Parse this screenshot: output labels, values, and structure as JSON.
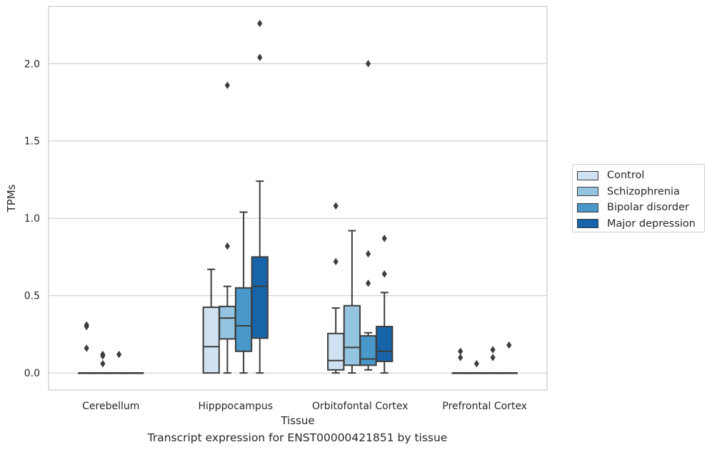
{
  "chart_data": {
    "type": "box",
    "title": "",
    "xlabel": "Tissue",
    "ylabel": "TPMs",
    "caption": "Transcript expression for ENST00000421851 by tissue",
    "ylim": [
      -0.11,
      2.37
    ],
    "yticks": [
      0.0,
      0.5,
      1.0,
      1.5,
      2.0
    ],
    "ytick_labels": [
      "0.0",
      "0.5",
      "1.0",
      "1.5",
      "2.0"
    ],
    "grid": "horizontal",
    "legend_position": "right",
    "categories": [
      "Cerebellum",
      "Hipppocampus",
      "Orbitofontal Cortex",
      "Prefrontal Cortex"
    ],
    "series": [
      {
        "name": "Control",
        "color": "#d0e1f2",
        "boxes": [
          {
            "whisker_low": 0.0,
            "q1": 0.0,
            "median": 0.0,
            "q3": 0.0,
            "whisker_high": 0.0,
            "outliers": [
              0.3,
              0.31,
              0.16
            ]
          },
          {
            "whisker_low": 0.0,
            "q1": 0.0,
            "median": 0.17,
            "q3": 0.425,
            "whisker_high": 0.67,
            "outliers": []
          },
          {
            "whisker_low": 0.0,
            "q1": 0.02,
            "median": 0.08,
            "q3": 0.255,
            "whisker_high": 0.42,
            "outliers": [
              0.72,
              1.08
            ]
          },
          {
            "whisker_low": 0.0,
            "q1": 0.0,
            "median": 0.0,
            "q3": 0.0,
            "whisker_high": 0.0,
            "outliers": [
              0.1,
              0.14
            ]
          }
        ]
      },
      {
        "name": "Schizophrenia",
        "color": "#94c4df",
        "boxes": [
          {
            "whisker_low": 0.0,
            "q1": 0.0,
            "median": 0.0,
            "q3": 0.0,
            "whisker_high": 0.0,
            "outliers": [
              0.06,
              0.11,
              0.12
            ]
          },
          {
            "whisker_low": 0.0,
            "q1": 0.22,
            "median": 0.355,
            "q3": 0.43,
            "whisker_high": 0.56,
            "outliers": [
              0.82,
              1.86
            ]
          },
          {
            "whisker_low": 0.0,
            "q1": 0.05,
            "median": 0.165,
            "q3": 0.435,
            "whisker_high": 0.92,
            "outliers": []
          },
          {
            "whisker_low": 0.0,
            "q1": 0.0,
            "median": 0.0,
            "q3": 0.0,
            "whisker_high": 0.0,
            "outliers": [
              0.06
            ]
          }
        ]
      },
      {
        "name": "Bipolar disorder",
        "color": "#4a98c9",
        "boxes": [
          {
            "whisker_low": 0.0,
            "q1": 0.0,
            "median": 0.0,
            "q3": 0.0,
            "whisker_high": 0.0,
            "outliers": [
              0.12
            ]
          },
          {
            "whisker_low": 0.0,
            "q1": 0.14,
            "median": 0.305,
            "q3": 0.55,
            "whisker_high": 1.04,
            "outliers": []
          },
          {
            "whisker_low": 0.02,
            "q1": 0.05,
            "median": 0.09,
            "q3": 0.24,
            "whisker_high": 0.26,
            "outliers": [
              0.58,
              0.77,
              2.0
            ]
          },
          {
            "whisker_low": 0.0,
            "q1": 0.0,
            "median": 0.0,
            "q3": 0.0,
            "whisker_high": 0.0,
            "outliers": [
              0.1,
              0.15
            ]
          }
        ]
      },
      {
        "name": "Major depression",
        "color": "#1764ab",
        "boxes": [
          {
            "whisker_low": 0.0,
            "q1": 0.0,
            "median": 0.0,
            "q3": 0.0,
            "whisker_high": 0.0,
            "outliers": []
          },
          {
            "whisker_low": 0.0,
            "q1": 0.225,
            "median": 0.56,
            "q3": 0.75,
            "whisker_high": 1.24,
            "outliers": [
              2.04,
              2.26
            ]
          },
          {
            "whisker_low": 0.0,
            "q1": 0.075,
            "median": 0.14,
            "q3": 0.3,
            "whisker_high": 0.52,
            "outliers": [
              0.64,
              0.87
            ]
          },
          {
            "whisker_low": 0.0,
            "q1": 0.0,
            "median": 0.0,
            "q3": 0.0,
            "whisker_high": 0.0,
            "outliers": [
              0.18
            ]
          }
        ]
      }
    ]
  }
}
